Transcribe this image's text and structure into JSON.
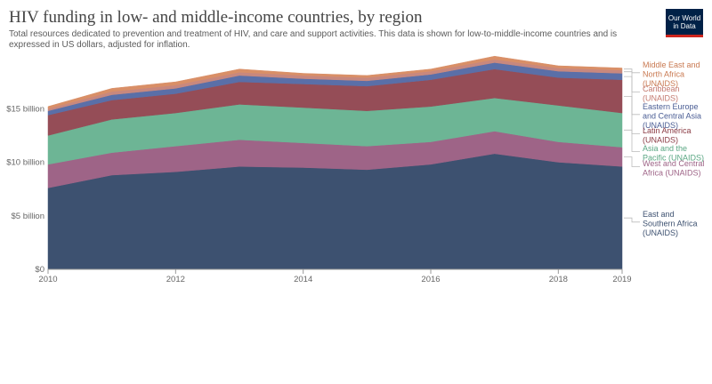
{
  "title": "HIV funding in low- and middle-income countries, by region",
  "subtitle": "Total resources dedicated to prevention and treatment of HIV, and care and support activities. This data is shown for low-to-middle-income countries and is expressed in US dollars, adjusted for inflation.",
  "logo": {
    "line1": "Our World",
    "line2": "in Data"
  },
  "colors": {
    "East and Southern Africa (UNAIDS)": "#3d5170",
    "West and Central Africa (UNAIDS)": "#9e6487",
    "Asia and the Pacific (UNAIDS)": "#6db595",
    "Latin America (UNAIDS)": "#954d57",
    "Eastern Europe and Central Asia (UNAIDS)": "#5a6fa8",
    "Caribbean (UNAIDS)": "#c8887e",
    "Middle East and North Africa (UNAIDS)": "#d98f67"
  },
  "chart_data": {
    "type": "area",
    "stacked": true,
    "x": [
      2010,
      2011,
      2012,
      2013,
      2014,
      2015,
      2016,
      2017,
      2018,
      2019
    ],
    "y_ticks": [
      0,
      5,
      10,
      15
    ],
    "y_tick_labels": [
      "$0",
      "$5 billion",
      "$10 billion",
      "$15 billion"
    ],
    "x_ticks": [
      2010,
      2012,
      2014,
      2016,
      2018,
      2019
    ],
    "ylim": [
      0,
      20
    ],
    "units": "billion US dollars",
    "series": [
      {
        "name": "East and Southern Africa (UNAIDS)",
        "legend": [
          "East and",
          "Southern Africa",
          "(UNAIDS)"
        ],
        "label_color": "#3d5170",
        "values": [
          7.6,
          8.8,
          9.1,
          9.6,
          9.5,
          9.3,
          9.8,
          10.8,
          10.0,
          9.6
        ]
      },
      {
        "name": "West and Central Africa (UNAIDS)",
        "legend": [
          "West and Central",
          "Africa (UNAIDS)"
        ],
        "label_color": "#9e6487",
        "values": [
          2.2,
          2.1,
          2.4,
          2.5,
          2.3,
          2.2,
          2.1,
          2.1,
          1.9,
          1.8
        ]
      },
      {
        "name": "Asia and the Pacific (UNAIDS)",
        "legend": [
          "Asia and the",
          "Pacific (UNAIDS)"
        ],
        "label_color": "#5aa783",
        "values": [
          2.7,
          3.1,
          3.1,
          3.3,
          3.3,
          3.3,
          3.3,
          3.1,
          3.4,
          3.2
        ]
      },
      {
        "name": "Latin America (UNAIDS)",
        "legend": [
          "Latin America",
          "(UNAIDS)"
        ],
        "label_color": "#8a3b44",
        "values": [
          1.9,
          1.8,
          1.8,
          2.1,
          2.2,
          2.3,
          2.5,
          2.7,
          2.6,
          3.1
        ]
      },
      {
        "name": "Eastern Europe and Central Asia (UNAIDS)",
        "legend": [
          "Eastern Europe",
          "and Central Asia",
          "(UNAIDS)"
        ],
        "label_color": "#4a5d94",
        "values": [
          0.4,
          0.5,
          0.5,
          0.6,
          0.5,
          0.5,
          0.5,
          0.6,
          0.6,
          0.6
        ]
      },
      {
        "name": "Caribbean (UNAIDS)",
        "legend": [
          "Caribbean",
          "(UNAIDS)"
        ],
        "label_color": "#c47a70",
        "values": [
          0.2,
          0.3,
          0.3,
          0.3,
          0.3,
          0.3,
          0.3,
          0.3,
          0.3,
          0.3
        ]
      },
      {
        "name": "Middle East and North Africa (UNAIDS)",
        "legend": [
          "Middle East and",
          "North Africa",
          "(UNAIDS)"
        ],
        "label_color": "#c97a52",
        "values": [
          0.2,
          0.3,
          0.3,
          0.3,
          0.2,
          0.2,
          0.2,
          0.3,
          0.2,
          0.2
        ]
      }
    ]
  }
}
